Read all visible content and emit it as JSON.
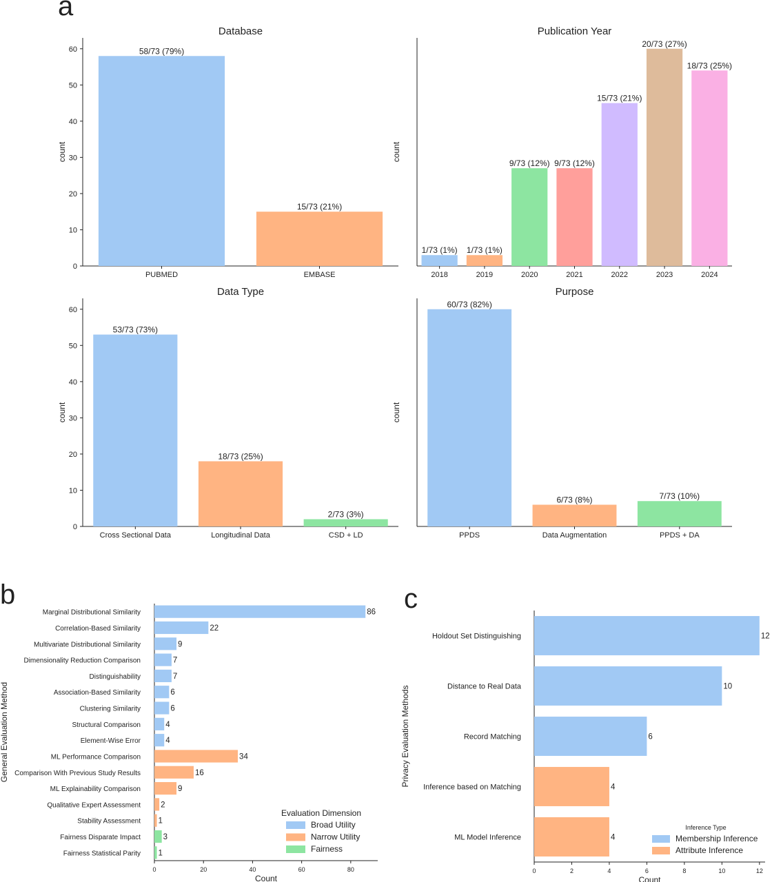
{
  "panels": {
    "a": "a",
    "b": "b",
    "c": "c"
  },
  "chart_data": [
    {
      "id": "database",
      "type": "bar",
      "title": "Database",
      "ylabel": "count",
      "xlabel": "",
      "ylim": [
        0,
        63
      ],
      "yticks": [
        0,
        10,
        20,
        30,
        40,
        50,
        60
      ],
      "show_yticks": true,
      "categories": [
        "PUBMED",
        "EMBASE"
      ],
      "values": [
        58,
        15
      ],
      "labels": [
        "58/73 (79%)",
        "15/73 (21%)"
      ],
      "colors": [
        "#a1c9f4",
        "#ffb482"
      ]
    },
    {
      "id": "year",
      "type": "bar",
      "title": "Publication Year",
      "ylabel": "count",
      "xlabel": "",
      "ylim": [
        0,
        21
      ],
      "show_yticks": false,
      "categories": [
        "2018",
        "2019",
        "2020",
        "2021",
        "2022",
        "2023",
        "2024"
      ],
      "values": [
        1,
        1,
        9,
        9,
        15,
        20,
        18
      ],
      "labels": [
        "1/73 (1%)",
        "1/73 (1%)",
        "9/73 (12%)",
        "9/73 (12%)",
        "15/73 (21%)",
        "20/73 (27%)",
        "18/73 (25%)"
      ],
      "colors": [
        "#a1c9f4",
        "#ffb482",
        "#8de5a1",
        "#ff9f9b",
        "#d0bbff",
        "#debb9b",
        "#fab0e4"
      ]
    },
    {
      "id": "datatype",
      "type": "bar",
      "title": "Data Type",
      "ylabel": "count",
      "xlabel": "",
      "ylim": [
        0,
        63
      ],
      "yticks": [
        0,
        10,
        20,
        30,
        40,
        50,
        60
      ],
      "show_yticks": true,
      "categories": [
        "Cross Sectional Data",
        "Longitudinal Data",
        "CSD + LD"
      ],
      "values": [
        53,
        18,
        2
      ],
      "labels": [
        "53/73 (73%)",
        "18/73 (25%)",
        "2/73 (3%)"
      ],
      "colors": [
        "#a1c9f4",
        "#ffb482",
        "#8de5a1"
      ]
    },
    {
      "id": "purpose",
      "type": "bar",
      "title": "Purpose",
      "ylabel": "count",
      "xlabel": "",
      "ylim": [
        0,
        63
      ],
      "show_yticks": false,
      "categories": [
        "PPDS",
        "Data Augmentation",
        "PPDS + DA"
      ],
      "values": [
        60,
        6,
        7
      ],
      "labels": [
        "60/73 (82%)",
        "6/73 (8%)",
        "7/73 (10%)"
      ],
      "colors": [
        "#a1c9f4",
        "#ffb482",
        "#8de5a1"
      ]
    },
    {
      "id": "general",
      "type": "bar",
      "orientation": "horizontal",
      "xlabel": "Count",
      "ylabel": "General Evaluation Method",
      "xlim": [
        0,
        91
      ],
      "xticks": [
        0,
        20,
        40,
        60,
        80
      ],
      "categories": [
        "Marginal Distributional Similarity",
        "Correlation-Based Similarity",
        "Multivariate Distributional Similarity",
        "Dimensionality Reduction Comparison",
        "Distinguishability",
        "Association-Based Similarity",
        "Clustering Similarity",
        "Structural Comparison",
        "Element-Wise Error",
        "ML Performance Comparison",
        "Comparison With Previous Study Results",
        "ML Explainability Comparison",
        "Qualitative Expert Assessment",
        "Stability Assessment",
        "Fairness Disparate Impact",
        "Fairness Statistical Parity"
      ],
      "values": [
        86,
        22,
        9,
        7,
        7,
        6,
        6,
        4,
        4,
        34,
        16,
        9,
        2,
        1,
        3,
        1
      ],
      "groups": [
        "Broad Utility",
        "Broad Utility",
        "Broad Utility",
        "Broad Utility",
        "Broad Utility",
        "Broad Utility",
        "Broad Utility",
        "Broad Utility",
        "Broad Utility",
        "Narrow Utility",
        "Narrow Utility",
        "Narrow Utility",
        "Narrow Utility",
        "Narrow Utility",
        "Fairness",
        "Fairness"
      ],
      "legend": {
        "title": "Evaluation Dimension",
        "position": "bottom-right",
        "entries": [
          {
            "name": "Broad Utility",
            "color": "#a1c9f4"
          },
          {
            "name": "Narrow Utility",
            "color": "#ffb482"
          },
          {
            "name": "Fairness",
            "color": "#8de5a1"
          }
        ]
      }
    },
    {
      "id": "privacy",
      "type": "bar",
      "orientation": "horizontal",
      "xlabel": "Count",
      "ylabel": "Privacy Evaluation Methods",
      "xlim": [
        0,
        12.3
      ],
      "xticks": [
        0,
        2,
        4,
        6,
        8,
        10,
        12
      ],
      "categories": [
        "Holdout Set Distinguishing",
        "Distance to Real Data",
        "Record Matching",
        "Inference based on Matching",
        "ML Model Inference"
      ],
      "values": [
        12,
        10,
        6,
        4,
        4
      ],
      "groups": [
        "Membership Inference",
        "Membership Inference",
        "Membership Inference",
        "Attribute Inference",
        "Attribute Inference"
      ],
      "legend": {
        "title": "Inference Type",
        "position": "bottom-right",
        "entries": [
          {
            "name": "Membership Inference",
            "color": "#a1c9f4"
          },
          {
            "name": "Attribute Inference",
            "color": "#ffb482"
          }
        ]
      }
    }
  ]
}
